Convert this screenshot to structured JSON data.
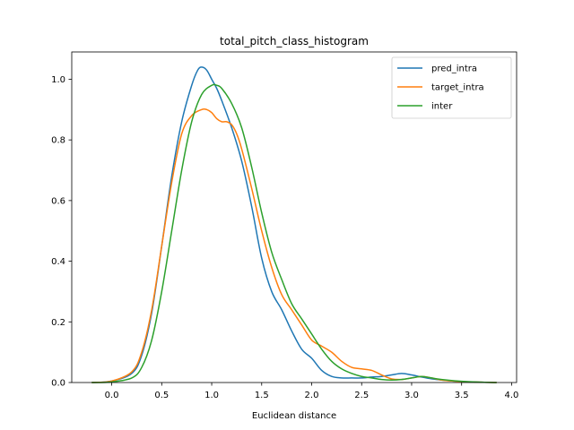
{
  "chart_data": {
    "type": "line",
    "title": "total_pitch_class_histogram",
    "xlabel": "Euclidean distance",
    "ylabel": "",
    "xlim": [
      -0.4,
      4.05
    ],
    "ylim": [
      0,
      1.09
    ],
    "xticks": [
      "0.0",
      "0.5",
      "1.0",
      "1.5",
      "2.0",
      "2.5",
      "3.0",
      "3.5",
      "4.0"
    ],
    "xtick_values": [
      0,
      0.5,
      1.0,
      1.5,
      2.0,
      2.5,
      3.0,
      3.5,
      4.0
    ],
    "yticks": [
      "0.0",
      "0.2",
      "0.4",
      "0.6",
      "0.8",
      "1.0"
    ],
    "ytick_values": [
      0,
      0.2,
      0.4,
      0.6,
      0.8,
      1.0
    ],
    "grid": false,
    "legend_position": "top-right",
    "series": [
      {
        "name": "pred_intra",
        "color": "#1f77b4",
        "x": [
          -0.2,
          0.0,
          0.2,
          0.3,
          0.4,
          0.5,
          0.6,
          0.7,
          0.8,
          0.86,
          0.9,
          0.95,
          1.0,
          1.05,
          1.1,
          1.2,
          1.3,
          1.4,
          1.5,
          1.6,
          1.7,
          1.8,
          1.9,
          2.0,
          2.1,
          2.2,
          2.3,
          2.4,
          2.5,
          2.6,
          2.7,
          2.8,
          2.9,
          3.0,
          3.1,
          3.2,
          3.3,
          3.5,
          3.7,
          3.85
        ],
        "y": [
          0.0,
          0.005,
          0.03,
          0.09,
          0.23,
          0.45,
          0.68,
          0.86,
          0.98,
          1.03,
          1.04,
          1.03,
          1.0,
          0.97,
          0.93,
          0.84,
          0.73,
          0.58,
          0.41,
          0.3,
          0.24,
          0.17,
          0.11,
          0.08,
          0.04,
          0.02,
          0.015,
          0.015,
          0.015,
          0.018,
          0.02,
          0.025,
          0.03,
          0.025,
          0.018,
          0.012,
          0.008,
          0.003,
          0.001,
          0.0
        ]
      },
      {
        "name": "target_intra",
        "color": "#ff7f0e",
        "x": [
          -0.2,
          0.0,
          0.2,
          0.3,
          0.4,
          0.5,
          0.6,
          0.7,
          0.8,
          0.9,
          0.95,
          1.0,
          1.05,
          1.1,
          1.15,
          1.2,
          1.25,
          1.3,
          1.4,
          1.5,
          1.6,
          1.7,
          1.8,
          1.9,
          2.0,
          2.1,
          2.2,
          2.3,
          2.4,
          2.5,
          2.6,
          2.7,
          2.8,
          2.9,
          3.0,
          3.1,
          3.2,
          3.3,
          3.5,
          3.7,
          3.85
        ],
        "y": [
          0.0,
          0.005,
          0.035,
          0.1,
          0.24,
          0.45,
          0.66,
          0.82,
          0.88,
          0.9,
          0.9,
          0.89,
          0.87,
          0.86,
          0.86,
          0.85,
          0.82,
          0.77,
          0.64,
          0.5,
          0.38,
          0.29,
          0.24,
          0.19,
          0.14,
          0.12,
          0.1,
          0.07,
          0.05,
          0.045,
          0.04,
          0.025,
          0.012,
          0.01,
          0.015,
          0.02,
          0.015,
          0.008,
          0.003,
          0.001,
          0.0
        ]
      },
      {
        "name": "inter",
        "color": "#2ca02c",
        "x": [
          -0.2,
          0.0,
          0.2,
          0.3,
          0.4,
          0.5,
          0.6,
          0.7,
          0.8,
          0.9,
          1.0,
          1.05,
          1.1,
          1.2,
          1.3,
          1.4,
          1.5,
          1.6,
          1.7,
          1.8,
          1.9,
          2.0,
          2.1,
          2.2,
          2.3,
          2.4,
          2.5,
          2.6,
          2.7,
          2.8,
          2.9,
          3.0,
          3.1,
          3.2,
          3.3,
          3.5,
          3.7,
          3.85
        ],
        "y": [
          0.0,
          0.002,
          0.015,
          0.05,
          0.14,
          0.3,
          0.5,
          0.7,
          0.86,
          0.95,
          0.98,
          0.98,
          0.97,
          0.92,
          0.84,
          0.71,
          0.56,
          0.43,
          0.34,
          0.26,
          0.21,
          0.16,
          0.11,
          0.07,
          0.045,
          0.03,
          0.02,
          0.015,
          0.01,
          0.008,
          0.01,
          0.015,
          0.02,
          0.015,
          0.01,
          0.004,
          0.001,
          0.0
        ]
      }
    ]
  }
}
